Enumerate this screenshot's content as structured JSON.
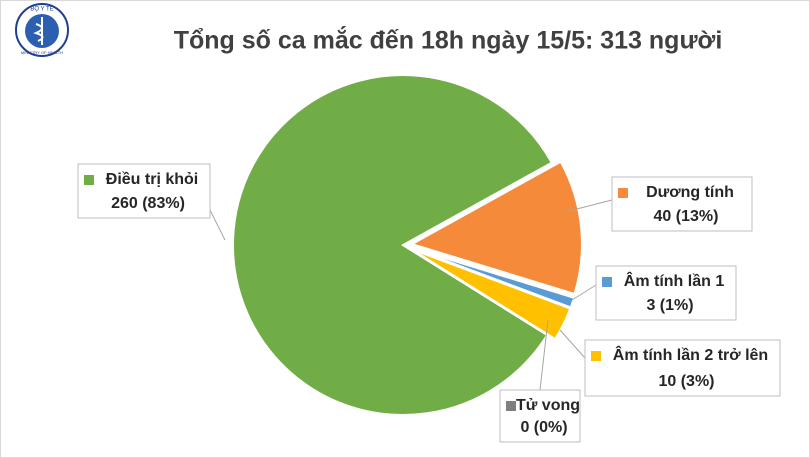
{
  "logo": {
    "top": "BỘ Y TẾ",
    "bottom": "MINISTRY OF HEALTH"
  },
  "chart_data": {
    "type": "pie",
    "title": "Tổng số ca mắc đến 18h ngày 15/5: 313 người",
    "categories": [
      "Điều trị khỏi",
      "Dương tính",
      "Âm tính lần 1",
      "Âm tính lần 2 trở lên",
      "Tử vong"
    ],
    "values": [
      260,
      40,
      3,
      10,
      0
    ],
    "value_labels": [
      "260 (83%)",
      "40 (13%)",
      "3 (1%)",
      "10 (3%)",
      "0 (0%)"
    ],
    "colors": [
      "#70ad47",
      "#f58a3a",
      "#5b9bd5",
      "#ffc000",
      "#7f7f7f"
    ]
  }
}
